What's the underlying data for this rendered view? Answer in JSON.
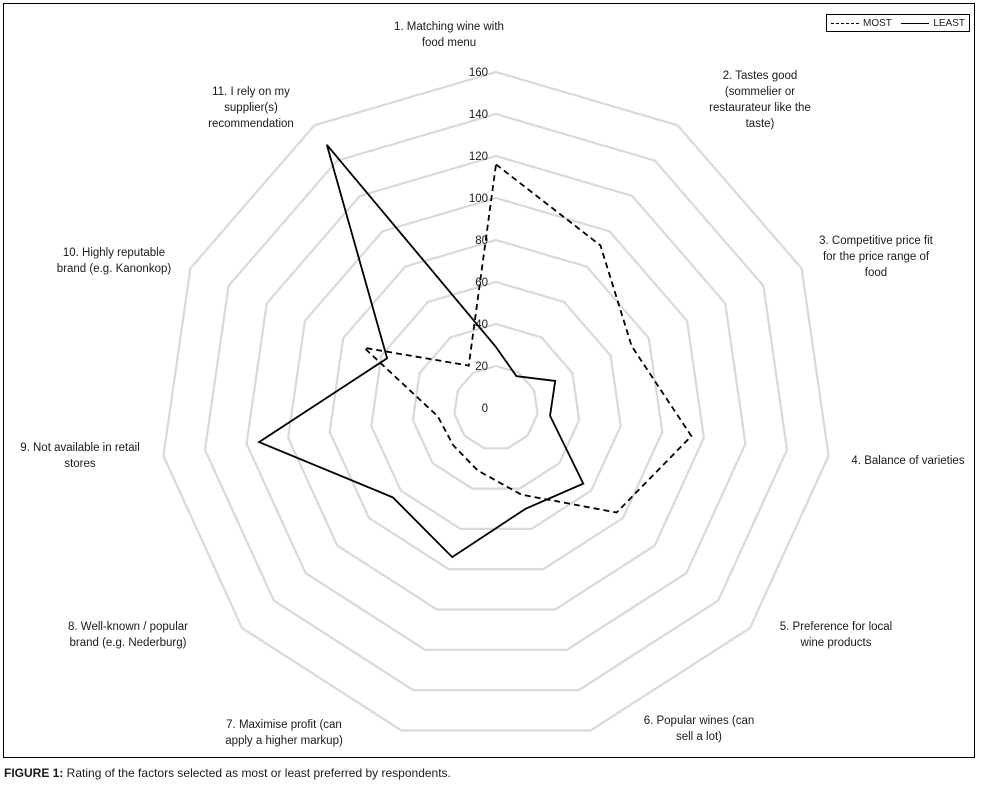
{
  "chart_data": {
    "type": "radar",
    "title": "",
    "categories": [
      "1. Matching wine with food menu",
      "2. Tastes good (sommelier or restaurateur like the taste)",
      "3. Competitive price fit for the price range of food",
      "4. Balance of varieties",
      "5. Preference for local wine products",
      "6. Popular wines (can sell a lot)",
      "7. Maximise profit (can apply a higher markup)",
      "8. Well-known / popular brand (e.g. Nederburg)",
      "9. Not available in retail stores",
      "10. Highly reputable brand (e.g. Kanonkop)",
      "11. I rely on my supplier(s) recommendation"
    ],
    "category_lines": [
      [
        "1. Matching wine with",
        "food menu"
      ],
      [
        "2. Tastes good",
        "(sommelier or",
        "restaurateur like the",
        "taste)"
      ],
      [
        "3. Competitive price fit",
        "for the price range of",
        "food"
      ],
      [
        "4. Balance of varieties"
      ],
      [
        "5. Preference for local",
        "wine products"
      ],
      [
        "6. Popular wines (can",
        "sell a lot)"
      ],
      [
        "7. Maximise profit (can",
        "apply a higher markup)"
      ],
      [
        "8. Well-known / popular",
        "brand (e.g. Nederburg)"
      ],
      [
        "9. Not available in retail",
        "stores"
      ],
      [
        "10. Highly reputable",
        "brand (e.g. Kanonkop)"
      ],
      [
        "11. I rely on my",
        "supplier(s)",
        "recommendation"
      ]
    ],
    "series": [
      {
        "name": "MOST",
        "style": "dashed",
        "color": "#000000",
        "values": [
          116,
          92,
          71,
          94,
          76,
          43,
          31,
          27,
          28,
          69,
          24
        ]
      },
      {
        "name": "LEAST",
        "style": "solid",
        "color": "#000000",
        "values": [
          29,
          18,
          31,
          26,
          55,
          50,
          74,
          65,
          114,
          57,
          149
        ]
      }
    ],
    "rlim": [
      0,
      160
    ],
    "rticks": [
      0,
      20,
      40,
      60,
      80,
      100,
      120,
      140,
      160
    ],
    "grid": true,
    "grid_color": "#d9d9d9",
    "legend": "top-right"
  },
  "legend": {
    "most": "MOST",
    "least": "LEAST"
  },
  "caption": {
    "prefix": "FIGURE 1:",
    "text": " Rating of the factors selected as most or least preferred by respondents."
  }
}
